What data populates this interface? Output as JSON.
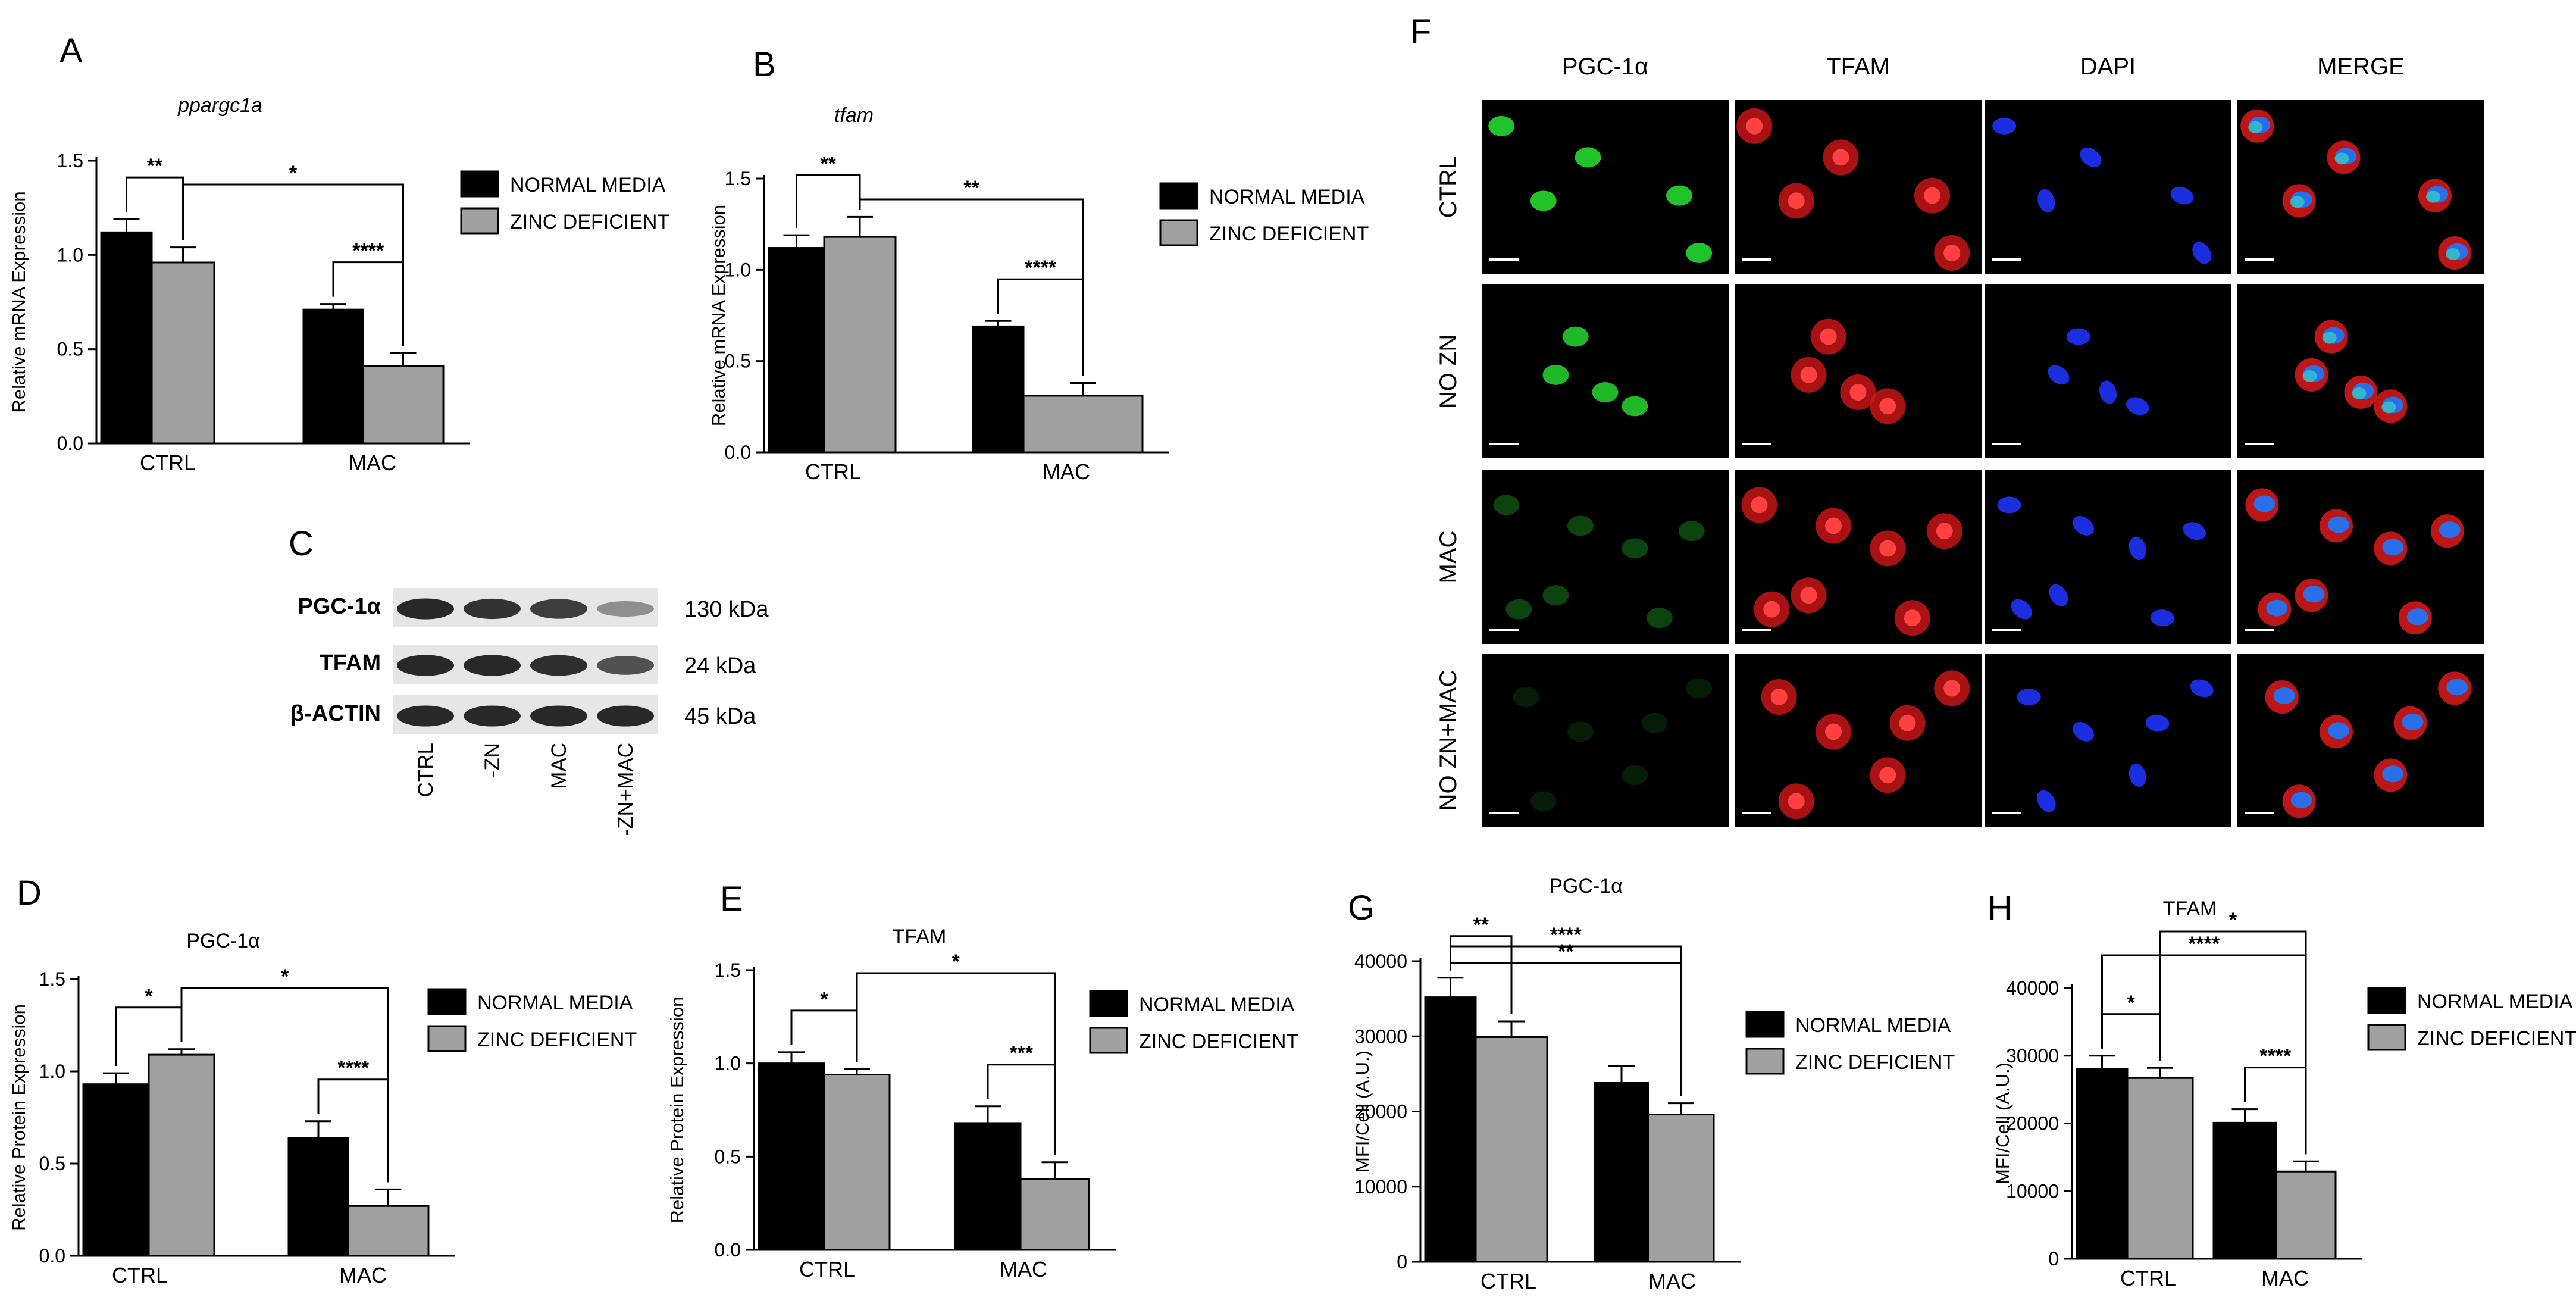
{
  "panels": {
    "A": {
      "letter": "A"
    },
    "B": {
      "letter": "B"
    },
    "C": {
      "letter": "C"
    },
    "D": {
      "letter": "D"
    },
    "E": {
      "letter": "E"
    },
    "F": {
      "letter": "F"
    },
    "G": {
      "letter": "G"
    },
    "H": {
      "letter": "H"
    }
  },
  "colors": {
    "normal_media": "#000000",
    "zinc_deficient": "#a0a0a0"
  },
  "chart_data": [
    {
      "id": "A",
      "type": "bar",
      "title": "ppargc1a",
      "title_italic": true,
      "ylabel": "Relative mRNA Expression",
      "xlabel": "",
      "ylim": [
        0,
        1.5
      ],
      "yticks": [
        0.0,
        0.5,
        1.0,
        1.5
      ],
      "ytick_labels": [
        "0.0",
        "0.5",
        "1.0",
        "1.5"
      ],
      "categories": [
        "CTRL",
        "MAC"
      ],
      "series": [
        {
          "name": "NORMAL MEDIA",
          "values": [
            1.12,
            0.71
          ],
          "errors": [
            0.07,
            0.03
          ]
        },
        {
          "name": "ZINC DEFICIENT",
          "values": [
            0.96,
            0.41
          ],
          "errors": [
            0.08,
            0.07
          ]
        }
      ],
      "significance": [
        {
          "from": [
            0,
            0
          ],
          "to": [
            1,
            0
          ],
          "label": "**"
        },
        {
          "from": [
            0,
            1
          ],
          "to": [
            1,
            1
          ],
          "label": "****"
        },
        {
          "from": [
            1,
            0
          ],
          "to": [
            1,
            1
          ],
          "label": "*"
        }
      ]
    },
    {
      "id": "B",
      "type": "bar",
      "title": "tfam",
      "title_italic": true,
      "ylabel": "Relative mRNA Expression",
      "xlabel": "",
      "ylim": [
        0,
        1.5
      ],
      "yticks": [
        0.0,
        0.5,
        1.0,
        1.5
      ],
      "ytick_labels": [
        "0.0",
        "0.5",
        "1.0",
        "1.5"
      ],
      "categories": [
        "CTRL",
        "MAC"
      ],
      "series": [
        {
          "name": "NORMAL MEDIA",
          "values": [
            1.12,
            0.69
          ],
          "errors": [
            0.07,
            0.03
          ]
        },
        {
          "name": "ZINC DEFICIENT",
          "values": [
            1.18,
            0.31
          ],
          "errors": [
            0.11,
            0.07
          ]
        }
      ],
      "significance": [
        {
          "from": [
            0,
            0
          ],
          "to": [
            1,
            0
          ],
          "label": "**"
        },
        {
          "from": [
            0,
            1
          ],
          "to": [
            1,
            1
          ],
          "label": "****"
        },
        {
          "from": [
            1,
            0
          ],
          "to": [
            1,
            1
          ],
          "label": "**"
        }
      ]
    },
    {
      "id": "D",
      "type": "bar",
      "title": "PGC-1α",
      "title_italic": false,
      "ylabel": "Relative Protein Expression",
      "xlabel": "",
      "ylim": [
        0,
        1.5
      ],
      "yticks": [
        0.0,
        0.5,
        1.0,
        1.5
      ],
      "ytick_labels": [
        "0.0",
        "0.5",
        "1.0",
        "1.5"
      ],
      "categories": [
        "CTRL",
        "MAC"
      ],
      "series": [
        {
          "name": "NORMAL MEDIA",
          "values": [
            0.93,
            0.64
          ],
          "errors": [
            0.06,
            0.09
          ]
        },
        {
          "name": "ZINC DEFICIENT",
          "values": [
            1.09,
            0.27
          ],
          "errors": [
            0.03,
            0.09
          ]
        }
      ],
      "significance": [
        {
          "from": [
            0,
            0
          ],
          "to": [
            1,
            0
          ],
          "label": "*"
        },
        {
          "from": [
            0,
            1
          ],
          "to": [
            1,
            1
          ],
          "label": "****"
        },
        {
          "from": [
            1,
            0
          ],
          "to": [
            1,
            1
          ],
          "label": "*"
        }
      ]
    },
    {
      "id": "E",
      "type": "bar",
      "title": "TFAM",
      "title_italic": false,
      "ylabel": "Relative Protein Expression",
      "xlabel": "",
      "ylim": [
        0,
        1.5
      ],
      "yticks": [
        0.0,
        0.5,
        1.0,
        1.5
      ],
      "ytick_labels": [
        "0.0",
        "0.5",
        "1.0",
        "1.5"
      ],
      "categories": [
        "CTRL",
        "MAC"
      ],
      "series": [
        {
          "name": "NORMAL MEDIA",
          "values": [
            1.0,
            0.68
          ],
          "errors": [
            0.06,
            0.09
          ]
        },
        {
          "name": "ZINC DEFICIENT",
          "values": [
            0.94,
            0.38
          ],
          "errors": [
            0.03,
            0.09
          ]
        }
      ],
      "significance": [
        {
          "from": [
            0,
            0
          ],
          "to": [
            1,
            0
          ],
          "label": "*"
        },
        {
          "from": [
            0,
            1
          ],
          "to": [
            1,
            1
          ],
          "label": "***"
        },
        {
          "from": [
            1,
            0
          ],
          "to": [
            1,
            1
          ],
          "label": "*"
        }
      ]
    },
    {
      "id": "G",
      "type": "bar",
      "title": "PGC-1α",
      "title_italic": false,
      "ylabel": "MFI/Cell (A.U.)",
      "xlabel": "",
      "ylim": [
        0,
        40000
      ],
      "yticks": [
        0,
        10000,
        20000,
        30000,
        40000
      ],
      "ytick_labels": [
        "0",
        "10000",
        "20000",
        "30000",
        "40000"
      ],
      "categories": [
        "CTRL",
        "MAC"
      ],
      "series": [
        {
          "name": "NORMAL MEDIA",
          "values": [
            35200,
            23800
          ],
          "errors": [
            2600,
            2300
          ]
        },
        {
          "name": "ZINC DEFICIENT",
          "values": [
            29900,
            19600
          ],
          "errors": [
            2100,
            1500
          ]
        }
      ],
      "significance": [
        {
          "from": [
            0,
            0
          ],
          "to": [
            1,
            0
          ],
          "label": "**"
        },
        {
          "from": [
            0,
            0
          ],
          "to": [
            1,
            1
          ],
          "label": "**"
        },
        {
          "from": [
            0,
            0
          ],
          "to": [
            1,
            1
          ],
          "label": "****"
        }
      ]
    },
    {
      "id": "H",
      "type": "bar",
      "title": "TFAM",
      "title_italic": false,
      "ylabel": "MFI/Cell (A.U.)",
      "xlabel": "",
      "ylim": [
        0,
        40000
      ],
      "yticks": [
        0,
        10000,
        20000,
        30000,
        40000
      ],
      "ytick_labels": [
        "0",
        "10000",
        "20000",
        "30000",
        "40000"
      ],
      "categories": [
        "CTRL",
        "MAC"
      ],
      "series": [
        {
          "name": "NORMAL MEDIA",
          "values": [
            28000,
            20100
          ],
          "errors": [
            2000,
            2000
          ]
        },
        {
          "name": "ZINC DEFICIENT",
          "values": [
            26700,
            12900
          ],
          "errors": [
            1500,
            1500
          ]
        }
      ],
      "significance": [
        {
          "from": [
            0,
            0
          ],
          "to": [
            1,
            0
          ],
          "label": "*"
        },
        {
          "from": [
            0,
            1
          ],
          "to": [
            1,
            1
          ],
          "label": "****"
        },
        {
          "from": [
            0,
            0
          ],
          "to": [
            1,
            1
          ],
          "label": "****"
        },
        {
          "from": [
            1,
            0
          ],
          "to": [
            1,
            1
          ],
          "label": "*"
        }
      ]
    }
  ],
  "western_blot": {
    "rows": [
      {
        "label": "PGC-1α",
        "kda": "130 kDa",
        "intensities": [
          0.95,
          0.9,
          0.85,
          0.45
        ]
      },
      {
        "label": "TFAM",
        "kda": "24 kDa",
        "intensities": [
          0.95,
          0.95,
          0.92,
          0.75
        ]
      },
      {
        "label": "β-ACTIN",
        "kda": "45 kDa",
        "intensities": [
          0.95,
          0.95,
          0.95,
          0.95
        ]
      }
    ],
    "lanes": [
      "CTRL",
      "-ZN",
      "MAC",
      "-ZN+MAC"
    ]
  },
  "immunofluorescence": {
    "columns": [
      "PGC-1α",
      "TFAM",
      "DAPI",
      "MERGE"
    ],
    "rows": [
      "CTRL",
      "NO ZN",
      "MAC",
      "NO ZN+MAC"
    ],
    "channel_colors": [
      "#22c22a",
      "#e01818",
      "#1a2ee0",
      "merge"
    ]
  }
}
